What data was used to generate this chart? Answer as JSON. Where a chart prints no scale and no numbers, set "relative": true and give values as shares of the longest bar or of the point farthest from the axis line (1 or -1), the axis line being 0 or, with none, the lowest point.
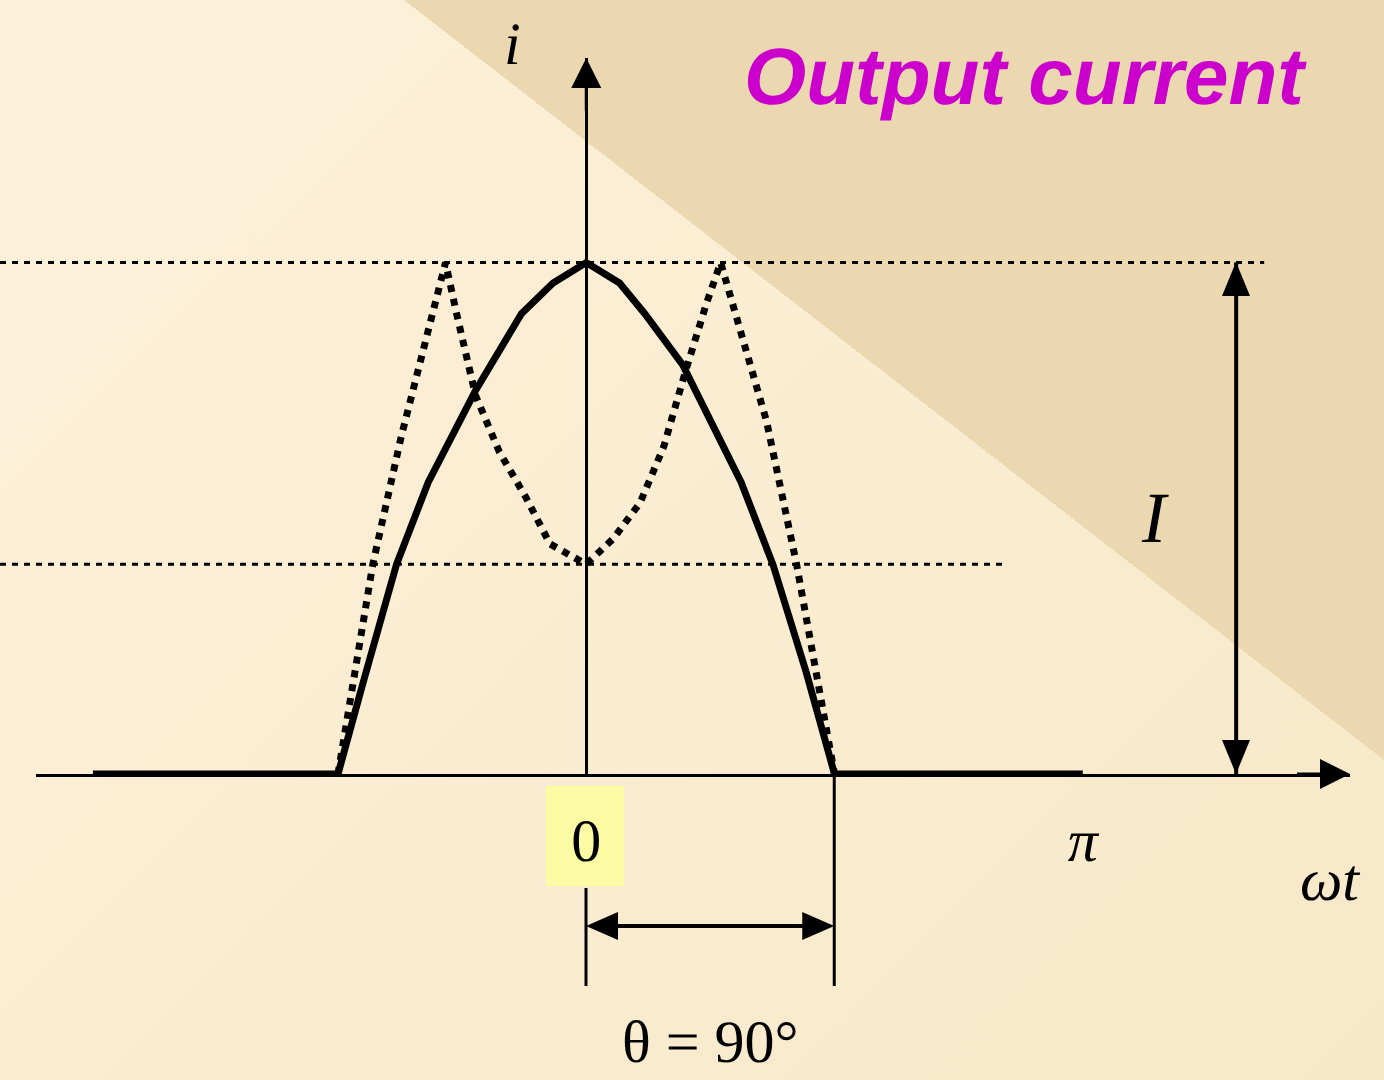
{
  "chart_data": {
    "type": "line",
    "title": "Output current",
    "xlabel": "ωt",
    "ylabel": "i",
    "relative": true,
    "xlim": [
      -3.48,
      4.83
    ],
    "xticks": [
      0,
      {
        "value": 3.14,
        "label": "π"
      }
    ],
    "series": [
      {
        "x": [
          -3.12,
          -1.57,
          -1.41,
          -1.2,
          -1.0,
          -0.7,
          -0.41,
          -0.21,
          0,
          0.21,
          0.37,
          0.61,
          0.98,
          1.18,
          1.39,
          1.57,
          3.14
        ],
        "values": [
          0,
          0,
          0.18,
          0.41,
          0.57,
          0.75,
          0.9,
          0.96,
          1,
          0.96,
          0.9,
          0.8,
          0.57,
          0.41,
          0.2,
          0,
          0
        ],
        "color": "#000000",
        "line_style": "solid"
      },
      {
        "x": [
          -1.57,
          -1.35,
          -1.17,
          -1.03,
          -0.89,
          -0.82,
          -0.7,
          -0.55,
          -0.38,
          -0.23,
          0,
          0.17,
          0.34,
          0.49,
          0.63,
          0.76,
          0.85,
          1.14,
          1.33,
          1.57
        ],
        "values": [
          0,
          0.41,
          0.66,
          0.83,
          1,
          0.9,
          0.74,
          0.63,
          0.54,
          0.45,
          0.41,
          0.46,
          0.53,
          0.64,
          0.79,
          0.92,
          1,
          0.69,
          0.41,
          0
        ],
        "color": "#000000",
        "line_style": "dotted"
      }
    ],
    "ref_lines": [
      {
        "axis": "y",
        "value": 1,
        "line_style": "dotted",
        "color": "#000000"
      },
      {
        "axis": "y",
        "value": 0.41,
        "line_style": "dotted",
        "color": "#000000"
      },
      {
        "axis": "x",
        "value": 4.11,
        "label": "I",
        "line_style": "solid",
        "color": "#000000"
      }
    ],
    "annotations": [
      {
        "text": "θ = 90°",
        "x": 1.57,
        "y": 0
      }
    ]
  }
}
